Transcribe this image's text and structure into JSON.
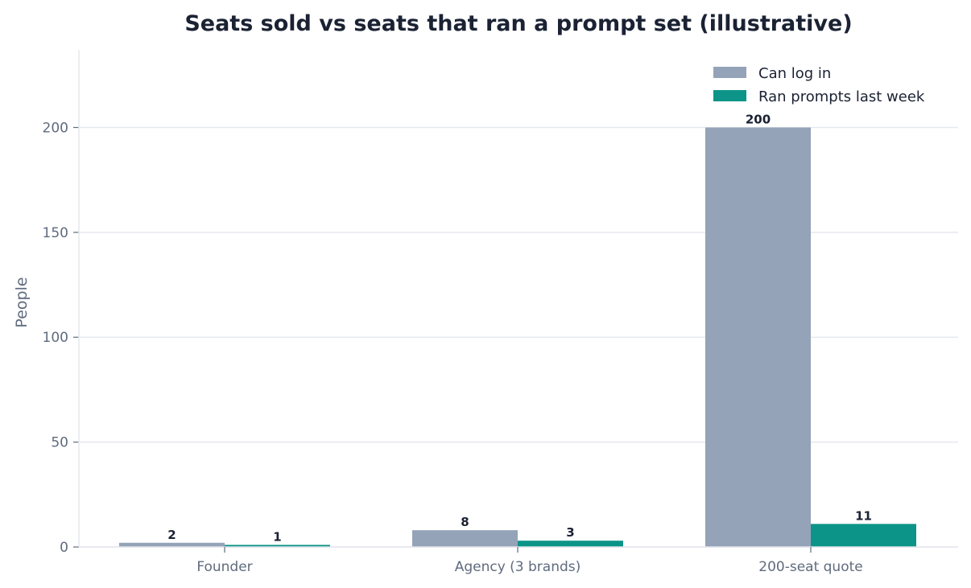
{
  "chart_data": {
    "type": "bar",
    "title": "Seats sold vs seats that ran a prompt set (illustrative)",
    "xlabel": "",
    "ylabel": "People",
    "categories": [
      "Founder",
      "Agency (3 brands)",
      "200-seat quote"
    ],
    "series": [
      {
        "name": "Can log in",
        "values": [
          2,
          8,
          200
        ],
        "color": "#94a3b8"
      },
      {
        "name": "Ran prompts last week",
        "values": [
          1,
          3,
          11
        ],
        "color": "#0d9488"
      }
    ],
    "ylim": [
      0,
      237
    ],
    "yticks": [
      0,
      50,
      100,
      150,
      200
    ],
    "grid": true,
    "legend": "top-right"
  }
}
